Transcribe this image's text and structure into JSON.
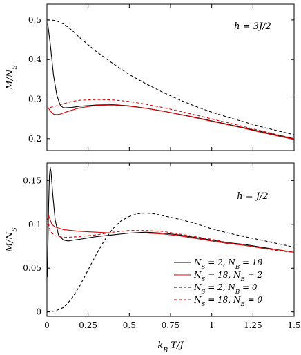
{
  "chart_data": [
    {
      "type": "line",
      "annotation": "h = 3J/2",
      "ylabel": "M/N_S",
      "xlim": [
        0,
        1.5
      ],
      "ylim": [
        0.17,
        0.54
      ],
      "yticks": [
        0.2,
        0.3,
        0.4,
        0.5
      ],
      "ytick_labels": [
        "0.2",
        "0.3",
        "0.4",
        "0.5"
      ],
      "xticks": [
        0,
        0.25,
        0.5,
        0.75,
        1,
        1.25,
        1.5
      ],
      "xtick_labels": [],
      "series": [
        {
          "color": "#000000",
          "dash": "solid",
          "x": [
            0.005,
            0.02,
            0.04,
            0.06,
            0.08,
            0.1,
            0.15,
            0.2,
            0.3,
            0.4,
            0.5,
            0.6,
            0.7,
            0.8,
            0.9,
            1.0,
            1.1,
            1.2,
            1.3,
            1.4,
            1.5
          ],
          "y": [
            0.49,
            0.44,
            0.36,
            0.31,
            0.285,
            0.278,
            0.279,
            0.282,
            0.285,
            0.286,
            0.283,
            0.277,
            0.27,
            0.262,
            0.254,
            0.245,
            0.236,
            0.227,
            0.218,
            0.209,
            0.2
          ]
        },
        {
          "color": "#e00000",
          "dash": "solid",
          "x": [
            0.005,
            0.02,
            0.04,
            0.06,
            0.08,
            0.1,
            0.15,
            0.2,
            0.3,
            0.4,
            0.5,
            0.6,
            0.7,
            0.8,
            0.9,
            1.0,
            1.1,
            1.2,
            1.3,
            1.4,
            1.5
          ],
          "y": [
            0.28,
            0.27,
            0.262,
            0.261,
            0.262,
            0.265,
            0.272,
            0.278,
            0.284,
            0.285,
            0.282,
            0.277,
            0.27,
            0.262,
            0.253,
            0.244,
            0.235,
            0.226,
            0.216,
            0.207,
            0.198
          ]
        },
        {
          "color": "#000000",
          "dash": "dashed",
          "x": [
            0.0,
            0.05,
            0.1,
            0.15,
            0.2,
            0.3,
            0.4,
            0.5,
            0.6,
            0.7,
            0.8,
            0.9,
            1.0,
            1.1,
            1.2,
            1.3,
            1.4,
            1.5
          ],
          "y": [
            0.5,
            0.499,
            0.49,
            0.475,
            0.455,
            0.42,
            0.39,
            0.362,
            0.339,
            0.318,
            0.299,
            0.282,
            0.267,
            0.254,
            0.242,
            0.23,
            0.22,
            0.21
          ]
        },
        {
          "color": "#e00000",
          "dash": "dashed",
          "x": [
            0.02,
            0.05,
            0.1,
            0.15,
            0.2,
            0.3,
            0.4,
            0.5,
            0.6,
            0.7,
            0.8,
            0.9,
            1.0,
            1.1,
            1.2,
            1.3,
            1.4,
            1.5
          ],
          "y": [
            0.279,
            0.282,
            0.288,
            0.294,
            0.297,
            0.299,
            0.298,
            0.294,
            0.287,
            0.279,
            0.27,
            0.26,
            0.25,
            0.24,
            0.23,
            0.22,
            0.21,
            0.2
          ]
        }
      ]
    },
    {
      "type": "line",
      "annotation": "h = J/2",
      "ylabel": "M/N_S",
      "xlabel": "k_B T/J",
      "xlim": [
        0,
        1.5
      ],
      "ylim": [
        -0.005,
        0.17
      ],
      "yticks": [
        0,
        0.05,
        0.1,
        0.15
      ],
      "ytick_labels": [
        "0",
        "0.05",
        "0.1",
        "0.15"
      ],
      "xticks": [
        0,
        0.25,
        0.5,
        0.75,
        1,
        1.25,
        1.5
      ],
      "xtick_labels": [
        "0",
        "0.25",
        "0.5",
        "0.75",
        "1",
        "1.25",
        "1.5"
      ],
      "legend_position": "lower-right",
      "series": [
        {
          "name": "N_S = 2, N_B = 18",
          "color": "#000000",
          "dash": "solid",
          "x": [
            0.003,
            0.01,
            0.015,
            0.02,
            0.025,
            0.035,
            0.05,
            0.07,
            0.1,
            0.13,
            0.16,
            0.2,
            0.3,
            0.4,
            0.5,
            0.6,
            0.7,
            0.8,
            0.9,
            1.0,
            1.1,
            1.2,
            1.3,
            1.4,
            1.5
          ],
          "y": [
            0.04,
            0.12,
            0.155,
            0.165,
            0.16,
            0.135,
            0.105,
            0.088,
            0.082,
            0.081,
            0.082,
            0.083,
            0.086,
            0.088,
            0.09,
            0.091,
            0.09,
            0.088,
            0.085,
            0.082,
            0.079,
            0.077,
            0.074,
            0.071,
            0.068
          ]
        },
        {
          "name": "N_S = 18, N_B = 2",
          "color": "#e00000",
          "dash": "solid",
          "x": [
            0.003,
            0.01,
            0.02,
            0.03,
            0.05,
            0.1,
            0.2,
            0.3,
            0.4,
            0.5,
            0.6,
            0.7,
            0.8,
            0.9,
            1.0,
            1.1,
            1.2,
            1.3,
            1.4,
            1.5
          ],
          "y": [
            0.105,
            0.11,
            0.105,
            0.1,
            0.097,
            0.094,
            0.092,
            0.091,
            0.09,
            0.09,
            0.09,
            0.089,
            0.087,
            0.084,
            0.081,
            0.078,
            0.076,
            0.073,
            0.071,
            0.068
          ]
        },
        {
          "name": "N_S = 2, N_B = 0",
          "color": "#000000",
          "dash": "dashed",
          "x": [
            0.0,
            0.05,
            0.1,
            0.15,
            0.2,
            0.25,
            0.3,
            0.35,
            0.4,
            0.45,
            0.5,
            0.55,
            0.6,
            0.65,
            0.7,
            0.8,
            0.9,
            1.0,
            1.1,
            1.2,
            1.3,
            1.4,
            1.5
          ],
          "y": [
            0.0,
            0.001,
            0.005,
            0.015,
            0.03,
            0.048,
            0.066,
            0.082,
            0.095,
            0.104,
            0.109,
            0.112,
            0.113,
            0.112,
            0.11,
            0.106,
            0.101,
            0.095,
            0.09,
            0.086,
            0.082,
            0.078,
            0.074
          ]
        },
        {
          "name": "N_S = 18, N_B = 0",
          "color": "#e00000",
          "dash": "dashed",
          "x": [
            0.003,
            0.01,
            0.02,
            0.05,
            0.1,
            0.2,
            0.3,
            0.4,
            0.5,
            0.6,
            0.7,
            0.8,
            0.9,
            1.0,
            1.1,
            1.2,
            1.3,
            1.4,
            1.5
          ],
          "y": [
            0.1,
            0.1,
            0.092,
            0.087,
            0.085,
            0.086,
            0.088,
            0.091,
            0.093,
            0.093,
            0.092,
            0.089,
            0.086,
            0.083,
            0.079,
            0.076,
            0.073,
            0.07,
            0.068
          ]
        }
      ]
    }
  ]
}
